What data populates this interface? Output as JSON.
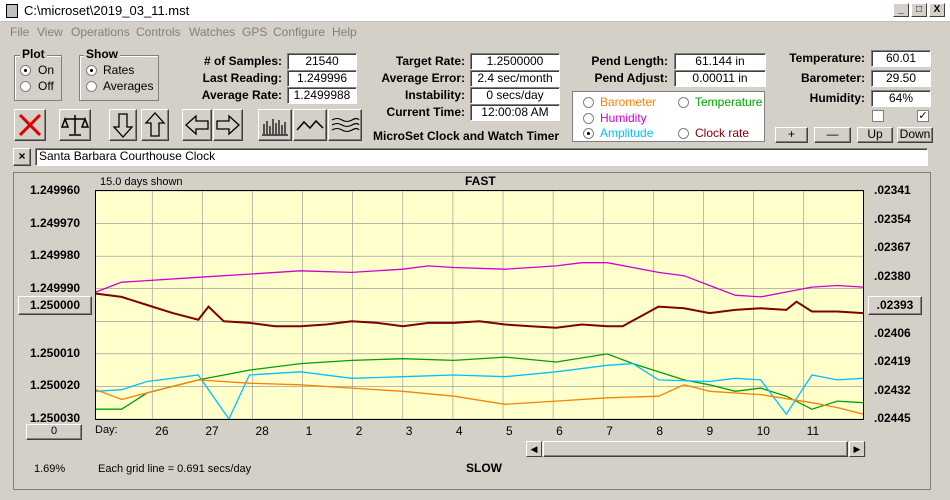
{
  "window": {
    "title": "C:\\microset\\2019_03_11.mst",
    "min": "_",
    "max": "□",
    "close": "X"
  },
  "menu": [
    "File",
    "View",
    "Operations",
    "Controls",
    "Watches",
    "GPS",
    "Configure",
    "Help"
  ],
  "plot_group": {
    "title": "Plot",
    "options": [
      "On",
      "Off"
    ],
    "selected": 0
  },
  "show_group": {
    "title": "Show",
    "options": [
      "Rates",
      "Averages"
    ],
    "selected": 0
  },
  "stats": {
    "samples_label": "# of Samples:",
    "samples": "21540",
    "last_reading_label": "Last Reading:",
    "last_reading": "1.249996",
    "average_rate_label": "Average Rate:",
    "average_rate": "1.2499988"
  },
  "targets": {
    "target_rate_label": "Target Rate:",
    "target_rate": "1.2500000",
    "avg_error_label": "Average Error:",
    "avg_error": "2.4 sec/month",
    "instability_label": "Instability:",
    "instability": "0 secs/day",
    "current_time_label": "Current Time:",
    "current_time": "12:00:08 AM"
  },
  "app_title": "MicroSet Clock and Watch Timer",
  "pendulum": {
    "length_label": "Pend Length:",
    "length": "61.144 in",
    "adjust_label": "Pend Adjust:",
    "adjust": "0.00011 in"
  },
  "series_select": {
    "options": [
      {
        "label": "Barometer",
        "color": "#ff8000"
      },
      {
        "label": "Temperature",
        "color": "#00a000"
      },
      {
        "label": "Humidity",
        "color": "#d000d0"
      },
      {
        "label": "Amplitude",
        "color": "#00c0ff"
      },
      {
        "label": "Clock rate",
        "color": "#800000"
      }
    ],
    "selected": 3
  },
  "environment": {
    "temperature_label": "Temperature:",
    "temperature": "60.01",
    "barometer_label": "Barometer:",
    "barometer": "29.50",
    "humidity_label": "Humidity:",
    "humidity": "64%"
  },
  "zoom_buttons": [
    "+",
    "—",
    "Up",
    "Down"
  ],
  "clock_name": "Santa Barbara Courthouse Clock",
  "chart_data": {
    "type": "line",
    "top_label": "FAST",
    "bottom_label": "SLOW",
    "days_shown": "15.0 days shown",
    "grid_note": "Each grid line = 0.691 secs/day",
    "x_label": "Day:",
    "x_ticks": [
      "26",
      "27",
      "28",
      "1",
      "2",
      "3",
      "4",
      "5",
      "6",
      "7",
      "8",
      "9",
      "10",
      "11"
    ],
    "y_left_ticks": [
      "1.249960",
      "1.249970",
      "1.249980",
      "1.249990",
      "1.250000",
      "1.250010",
      "1.250020",
      "1.250030"
    ],
    "y_left_range": [
      1.24996,
      1.25003
    ],
    "y_right_ticks": [
      ".02341",
      ".02354",
      ".02367",
      ".02380",
      ".02393",
      ".02406",
      ".02419",
      ".02432",
      ".02445"
    ],
    "center_left_value": "1.250000",
    "center_right_value": ".02393",
    "bottom_left_value": "0",
    "percent": "1.69%",
    "x_range_days": [
      0,
      15
    ],
    "series": [
      {
        "color": "#800000",
        "points": [
          [
            0,
            1.2499915
          ],
          [
            0.5,
            1.2499925
          ],
          [
            1,
            1.249995
          ],
          [
            1.5,
            1.2499975
          ],
          [
            2,
            1.2499995
          ],
          [
            2.2,
            1.2499955
          ],
          [
            2.5,
            1.25
          ],
          [
            3,
            1.2500005
          ],
          [
            3.5,
            1.2500015
          ],
          [
            4,
            1.2500015
          ],
          [
            4.5,
            1.250001
          ],
          [
            5,
            1.25
          ],
          [
            5.5,
            1.2500005
          ],
          [
            6,
            1.2500015
          ],
          [
            6.5,
            1.2500005
          ],
          [
            7,
            1.2500005
          ],
          [
            7.5,
            1.25
          ],
          [
            8,
            1.250001
          ],
          [
            8.5,
            1.2500015
          ],
          [
            9,
            1.250002
          ],
          [
            9.5,
            1.250001
          ],
          [
            10,
            1.2500015
          ],
          [
            10.3,
            1.2500015
          ],
          [
            11,
            1.2499955
          ],
          [
            11.5,
            1.249996
          ],
          [
            12,
            1.2499975
          ],
          [
            12.5,
            1.2499965
          ],
          [
            13,
            1.249996
          ],
          [
            13.5,
            1.2499965
          ],
          [
            13.7,
            1.249994
          ],
          [
            14,
            1.249997
          ],
          [
            14.5,
            1.249997
          ],
          [
            15,
            1.2499975
          ]
        ]
      },
      {
        "color": "#d000d0",
        "points": [
          [
            0,
            1.249991
          ],
          [
            0.5,
            1.249988
          ],
          [
            1,
            1.2499875
          ],
          [
            2,
            1.2499865
          ],
          [
            3,
            1.2499855
          ],
          [
            4,
            1.2499845
          ],
          [
            5,
            1.249985
          ],
          [
            6,
            1.249984
          ],
          [
            6.5,
            1.249983
          ],
          [
            7,
            1.2499835
          ],
          [
            8,
            1.249984
          ],
          [
            9,
            1.249983
          ],
          [
            9.5,
            1.249982
          ],
          [
            10,
            1.249982
          ],
          [
            10.5,
            1.2499835
          ],
          [
            11,
            1.249985
          ],
          [
            11.5,
            1.249986
          ],
          [
            12,
            1.249989
          ],
          [
            12.5,
            1.249992
          ],
          [
            13,
            1.2499925
          ],
          [
            13.5,
            1.249991
          ],
          [
            14,
            1.2499895
          ],
          [
            14.5,
            1.249989
          ],
          [
            15,
            1.2499895
          ]
        ]
      },
      {
        "color": "#00a000",
        "points": [
          [
            0,
            1.250027
          ],
          [
            0.5,
            1.250027
          ],
          [
            1,
            1.250022
          ],
          [
            2,
            1.250018
          ],
          [
            3,
            1.250015
          ],
          [
            4,
            1.250013
          ],
          [
            5,
            1.250012
          ],
          [
            6,
            1.2500115
          ],
          [
            7,
            1.250012
          ],
          [
            8,
            1.250011
          ],
          [
            9,
            1.2500125
          ],
          [
            10,
            1.25001
          ],
          [
            10.5,
            1.250013
          ],
          [
            11,
            1.2500155
          ],
          [
            11.5,
            1.250018
          ],
          [
            12,
            1.2500195
          ],
          [
            12.5,
            1.2500215
          ],
          [
            13,
            1.2500205
          ],
          [
            13.5,
            1.250023
          ],
          [
            14,
            1.250027
          ],
          [
            14.5,
            1.2500245
          ],
          [
            15,
            1.250025
          ]
        ]
      },
      {
        "color": "#00c0ff",
        "points": [
          [
            0,
            1.2500215
          ],
          [
            0.5,
            1.250021
          ],
          [
            1,
            1.2500185
          ],
          [
            2,
            1.2500165
          ],
          [
            2.6,
            1.25003
          ],
          [
            3,
            1.2500165
          ],
          [
            4,
            1.2500155
          ],
          [
            5,
            1.2500175
          ],
          [
            6,
            1.250017
          ],
          [
            7,
            1.2500165
          ],
          [
            8,
            1.250017
          ],
          [
            9,
            1.2500155
          ],
          [
            10,
            1.2500135
          ],
          [
            10.5,
            1.250013
          ],
          [
            11,
            1.250018
          ],
          [
            12,
            1.2500185
          ],
          [
            12.5,
            1.2500175
          ],
          [
            13,
            1.250018
          ],
          [
            13.5,
            1.2500285
          ],
          [
            14,
            1.2500165
          ],
          [
            14.5,
            1.250018
          ],
          [
            15,
            1.2500175
          ]
        ]
      },
      {
        "color": "#ff8000",
        "points": [
          [
            0,
            1.250021
          ],
          [
            0.5,
            1.250024
          ],
          [
            1,
            1.250022
          ],
          [
            2,
            1.250018
          ],
          [
            3,
            1.250019
          ],
          [
            4,
            1.2500195
          ],
          [
            5,
            1.2500205
          ],
          [
            6,
            1.2500215
          ],
          [
            7,
            1.250023
          ],
          [
            8,
            1.2500255
          ],
          [
            9,
            1.2500245
          ],
          [
            10,
            1.2500235
          ],
          [
            11,
            1.250023
          ],
          [
            11.5,
            1.2500195
          ],
          [
            12,
            1.2500215
          ],
          [
            13,
            1.2500225
          ],
          [
            14,
            1.250025
          ],
          [
            14.5,
            1.2500265
          ],
          [
            15,
            1.2500285
          ]
        ]
      }
    ]
  }
}
